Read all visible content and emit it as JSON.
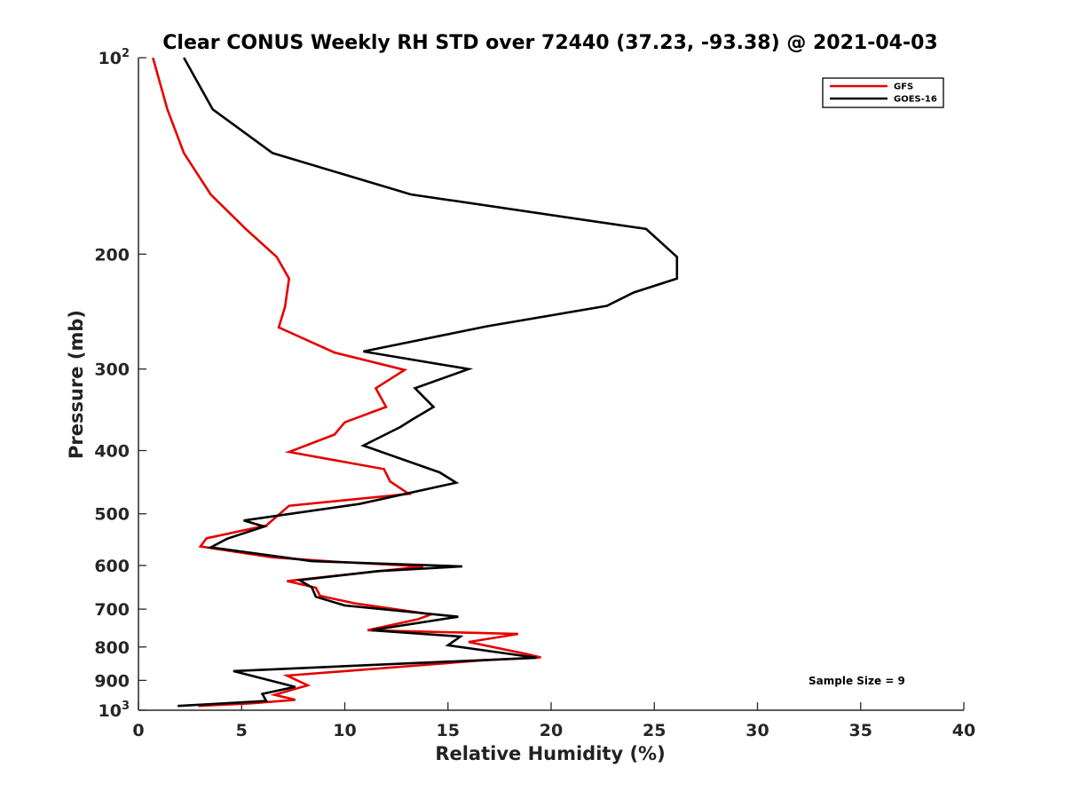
{
  "chart_data": {
    "type": "line",
    "title": "Clear CONUS Weekly RH STD over 72440 (37.23, -93.38) @ 2021-04-03",
    "xlabel": "Relative Humidity (%)",
    "ylabel": "Pressure (mb)",
    "xlim": [
      0,
      40
    ],
    "ylim": [
      100,
      1000
    ],
    "y_scale": "log",
    "y_reversed": true,
    "x_ticks": [
      "0",
      "5",
      "10",
      "15",
      "20",
      "25",
      "30",
      "35",
      "40"
    ],
    "y_ticks": [
      {
        "value": 100,
        "base": "10",
        "exp": "2"
      },
      {
        "value": 200,
        "label": "200"
      },
      {
        "value": 300,
        "label": "300"
      },
      {
        "value": 400,
        "label": "400"
      },
      {
        "value": 500,
        "label": "500"
      },
      {
        "value": 600,
        "label": "600"
      },
      {
        "value": 700,
        "label": "700"
      },
      {
        "value": 800,
        "label": "800"
      },
      {
        "value": 900,
        "label": "900"
      },
      {
        "value": 1000,
        "base": "10",
        "exp": "3"
      }
    ],
    "grid": false,
    "legend": {
      "position": "top-right",
      "entries": [
        "GFS",
        "GOES-16"
      ]
    },
    "annotation": "Sample Size = 9",
    "series": [
      {
        "name": "GFS",
        "color": "#e60000",
        "points": [
          [
            0.7,
            100
          ],
          [
            1.4,
            120
          ],
          [
            2.2,
            140
          ],
          [
            3.5,
            162
          ],
          [
            5.2,
            183
          ],
          [
            6.7,
            202
          ],
          [
            7.3,
            218
          ],
          [
            7.1,
            241
          ],
          [
            6.8,
            259
          ],
          [
            9.5,
            283
          ],
          [
            12.9,
            301
          ],
          [
            11.5,
            321
          ],
          [
            12.0,
            343
          ],
          [
            10.0,
            362
          ],
          [
            9.5,
            378
          ],
          [
            7.3,
            402
          ],
          [
            11.9,
            427
          ],
          [
            12.2,
            446
          ],
          [
            13.1,
            466
          ],
          [
            7.3,
            486
          ],
          [
            6.2,
            521
          ],
          [
            3.3,
            545
          ],
          [
            3.0,
            561
          ],
          [
            6.5,
            583
          ],
          [
            9.5,
            592
          ],
          [
            13.8,
            602
          ],
          [
            7.2,
            634
          ],
          [
            8.6,
            649
          ],
          [
            8.8,
            668
          ],
          [
            10.5,
            686
          ],
          [
            14.2,
            713
          ],
          [
            13.5,
            726
          ],
          [
            11.1,
            754
          ],
          [
            18.4,
            764
          ],
          [
            16.0,
            786
          ],
          [
            18.8,
            820
          ],
          [
            19.5,
            830
          ],
          [
            16.8,
            838
          ],
          [
            7.2,
            885
          ],
          [
            8.2,
            916
          ],
          [
            6.6,
            947
          ],
          [
            7.6,
            964
          ],
          [
            5.5,
            976
          ],
          [
            2.9,
            985
          ]
        ]
      },
      {
        "name": "GOES-16",
        "color": "#000000",
        "points": [
          [
            2.2,
            100
          ],
          [
            3.6,
            120
          ],
          [
            6.5,
            140
          ],
          [
            13.2,
            162
          ],
          [
            24.6,
            183
          ],
          [
            26.1,
            202
          ],
          [
            26.1,
            218
          ],
          [
            24.0,
            229
          ],
          [
            22.7,
            240
          ],
          [
            16.9,
            258
          ],
          [
            10.9,
            282
          ],
          [
            16.0,
            300
          ],
          [
            13.4,
            321
          ],
          [
            14.3,
            343
          ],
          [
            13.3,
            358
          ],
          [
            12.7,
            368
          ],
          [
            10.9,
            393
          ],
          [
            14.6,
            432
          ],
          [
            15.4,
            448
          ],
          [
            10.7,
            483
          ],
          [
            5.1,
            512
          ],
          [
            6.1,
            523
          ],
          [
            4.3,
            546
          ],
          [
            3.5,
            563
          ],
          [
            8.4,
            591
          ],
          [
            15.7,
            602
          ],
          [
            11.6,
            612
          ],
          [
            7.8,
            632
          ],
          [
            8.4,
            648
          ],
          [
            8.6,
            670
          ],
          [
            10.0,
            691
          ],
          [
            15.5,
            719
          ],
          [
            11.3,
            754
          ],
          [
            15.6,
            771
          ],
          [
            15.0,
            795
          ],
          [
            19.3,
            831
          ],
          [
            4.6,
            871
          ],
          [
            7.6,
            921
          ],
          [
            6.0,
            944
          ],
          [
            6.2,
            968
          ],
          [
            1.9,
            985
          ]
        ]
      }
    ]
  }
}
